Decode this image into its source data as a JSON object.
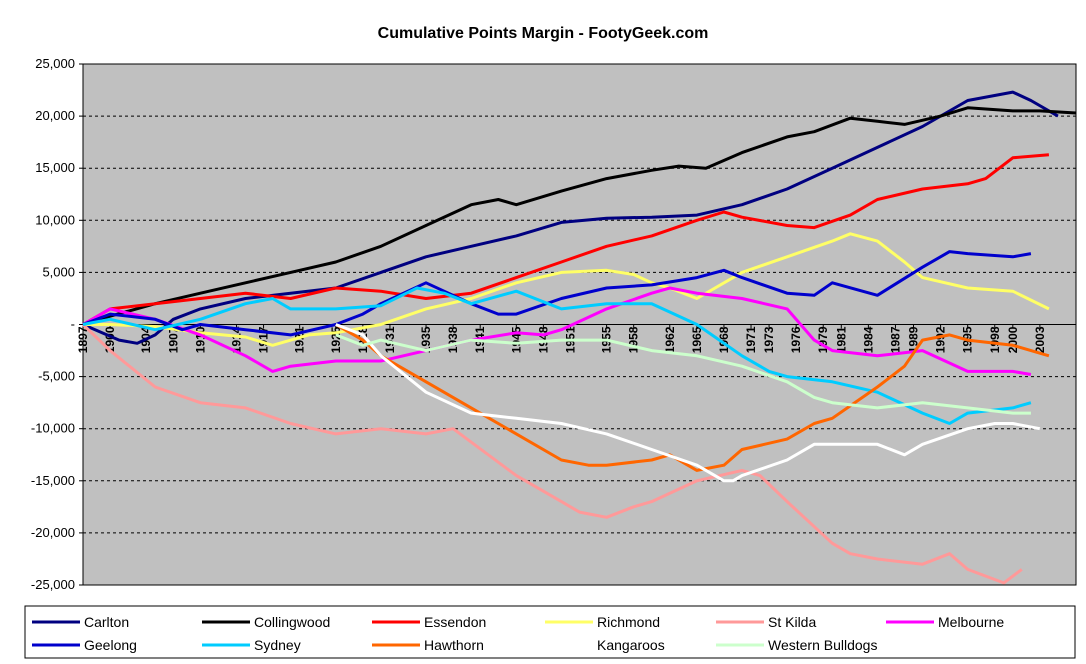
{
  "chart_data": {
    "type": "line",
    "title": "Cumulative Points Margin - FootyGeek.com",
    "xlabel": "",
    "ylabel": "",
    "ylim": [
      -25000,
      25000
    ],
    "xlim": [
      1897,
      2007
    ],
    "y_ticks": [
      25000,
      20000,
      15000,
      10000,
      5000,
      0,
      -5000,
      -10000,
      -15000,
      -20000,
      -25000
    ],
    "y_tick_labels": [
      "25,000",
      "20,000",
      "15,000",
      "10,000",
      "5,000",
      "-",
      "-5,000",
      "-10,000",
      "-15,000",
      "-20,000",
      "-25,000"
    ],
    "x_ticks": [
      1897,
      1900,
      1904,
      1907,
      1910,
      1914,
      1917,
      1921,
      1925,
      1928,
      1931,
      1935,
      1938,
      1941,
      1945,
      1948,
      1951,
      1955,
      1958,
      1962,
      1965,
      1968,
      1971,
      1973,
      1976,
      1979,
      1981,
      1984,
      1987,
      1989,
      1992,
      1995,
      1998,
      2000,
      2003
    ],
    "x_tick_labels": [
      "1897",
      "1900",
      "1904",
      "1907",
      "1910",
      "1914",
      "1917",
      "1921",
      "1925",
      "1928",
      "1931",
      "1935",
      "1938",
      "1941",
      "1945",
      "1948",
      "1951",
      "1955",
      "1958",
      "1962",
      "1965",
      "1968",
      "1971",
      "1973",
      "1976",
      "1979",
      "1981",
      "1984",
      "1987",
      "1989",
      "1992",
      "1995",
      "1998",
      "2000",
      "2003"
    ],
    "grid": "horizontal dashed",
    "background": "#c0c0c0",
    "legend_position": "bottom",
    "series": [
      {
        "name": "Carlton",
        "color": "#000080",
        "x": [
          1897,
          1901,
          1903,
          1905,
          1907,
          1910,
          1915,
          1920,
          1925,
          1930,
          1935,
          1940,
          1945,
          1950,
          1955,
          1960,
          1965,
          1970,
          1975,
          1980,
          1985,
          1990,
          1995,
          2000,
          2002,
          2005
        ],
        "y": [
          0,
          -1500,
          -1800,
          -1000,
          500,
          1500,
          2500,
          3000,
          3500,
          5000,
          6500,
          7500,
          8500,
          9800,
          10200,
          10300,
          10500,
          11500,
          13000,
          15000,
          17000,
          19000,
          21500,
          22300,
          21500,
          20000
        ]
      },
      {
        "name": "Collingwood",
        "color": "#000000",
        "x": [
          1897,
          1900,
          1905,
          1910,
          1915,
          1920,
          1925,
          1930,
          1935,
          1940,
          1943,
          1945,
          1950,
          1955,
          1960,
          1963,
          1966,
          1970,
          1975,
          1978,
          1982,
          1985,
          1988,
          1992,
          1995,
          2000,
          2003,
          2007
        ],
        "y": [
          0,
          800,
          2000,
          3000,
          4000,
          5000,
          6000,
          7500,
          9500,
          11500,
          12000,
          11500,
          12800,
          14000,
          14800,
          15200,
          15000,
          16500,
          18000,
          18500,
          19800,
          19500,
          19200,
          20000,
          20800,
          20500,
          20500,
          20300
        ]
      },
      {
        "name": "Essendon",
        "color": "#ff0000",
        "x": [
          1897,
          1900,
          1905,
          1910,
          1915,
          1920,
          1925,
          1930,
          1935,
          1940,
          1945,
          1950,
          1955,
          1960,
          1965,
          1968,
          1970,
          1975,
          1978,
          1982,
          1985,
          1990,
          1995,
          1997,
          2000,
          2004
        ],
        "y": [
          0,
          1500,
          2000,
          2500,
          3000,
          2500,
          3500,
          3200,
          2500,
          3000,
          4500,
          6000,
          7500,
          8500,
          10000,
          10800,
          10300,
          9500,
          9300,
          10500,
          12000,
          13000,
          13500,
          14000,
          16000,
          16300
        ]
      },
      {
        "name": "Richmond",
        "color": "#ffff66",
        "x": [
          1897,
          1900,
          1905,
          1910,
          1915,
          1918,
          1922,
          1925,
          1930,
          1935,
          1940,
          1945,
          1950,
          1955,
          1958,
          1960,
          1962,
          1965,
          1970,
          1975,
          1980,
          1982,
          1985,
          1988,
          1990,
          1995,
          2000,
          2004
        ],
        "y": [
          0,
          0,
          -200,
          -800,
          -1200,
          -2000,
          -1000,
          -800,
          0,
          1500,
          2500,
          4000,
          5000,
          5200,
          4800,
          4000,
          3500,
          2500,
          5000,
          6500,
          8000,
          8700,
          8000,
          6000,
          4500,
          3500,
          3200,
          1500
        ]
      },
      {
        "name": "St Kilda",
        "color": "#ff9999",
        "x": [
          1897,
          1900,
          1905,
          1910,
          1915,
          1920,
          1925,
          1930,
          1935,
          1938,
          1945,
          1950,
          1952,
          1955,
          1958,
          1960,
          1965,
          1970,
          1972,
          1975,
          1980,
          1982,
          1985,
          1990,
          1993,
          1995,
          1999,
          2001
        ],
        "y": [
          0,
          -2500,
          -6000,
          -7500,
          -8000,
          -9500,
          -10500,
          -10000,
          -10500,
          -10000,
          -14500,
          -17000,
          -18000,
          -18500,
          -17500,
          -17000,
          -15000,
          -14000,
          -14500,
          -17000,
          -21000,
          -22000,
          -22500,
          -23000,
          -22000,
          -23500,
          -24800,
          -23500
        ]
      },
      {
        "name": "Melbourne",
        "color": "#ff00ff",
        "x": [
          1897,
          1900,
          1905,
          1910,
          1915,
          1918,
          1920,
          1925,
          1930,
          1935,
          1940,
          1945,
          1948,
          1950,
          1955,
          1960,
          1962,
          1965,
          1970,
          1975,
          1978,
          1980,
          1985,
          1990,
          1995,
          2000,
          2002
        ],
        "y": [
          0,
          1500,
          500,
          -1000,
          -3000,
          -4500,
          -4000,
          -3500,
          -3500,
          -2500,
          -1500,
          -800,
          -1000,
          -500,
          1500,
          3000,
          3500,
          3000,
          2500,
          1500,
          -1500,
          -2500,
          -3000,
          -2500,
          -4500,
          -4500,
          -4800
        ]
      },
      {
        "name": "Geelong",
        "color": "#0000cc",
        "x": [
          1897,
          1900,
          1905,
          1908,
          1910,
          1915,
          1920,
          1925,
          1928,
          1930,
          1935,
          1940,
          1943,
          1945,
          1950,
          1955,
          1960,
          1965,
          1968,
          1970,
          1975,
          1978,
          1980,
          1985,
          1990,
          1993,
          1995,
          2000,
          2002
        ],
        "y": [
          0,
          1000,
          500,
          -500,
          0,
          -500,
          -1000,
          0,
          1000,
          2000,
          4000,
          2000,
          1000,
          1000,
          2500,
          3500,
          3800,
          4500,
          5200,
          4500,
          3000,
          2800,
          4000,
          2800,
          5500,
          7000,
          6800,
          6500,
          6800
        ]
      },
      {
        "name": "Sydney",
        "color": "#00ccff",
        "x": [
          1897,
          1900,
          1905,
          1910,
          1915,
          1918,
          1920,
          1925,
          1930,
          1934,
          1937,
          1940,
          1945,
          1950,
          1955,
          1960,
          1965,
          1970,
          1973,
          1975,
          1980,
          1985,
          1990,
          1993,
          1995,
          2000,
          2002
        ],
        "y": [
          0,
          500,
          -500,
          500,
          2000,
          2500,
          1500,
          1500,
          1800,
          3500,
          3000,
          2000,
          3200,
          1500,
          2000,
          2000,
          0,
          -3000,
          -4500,
          -5000,
          -5500,
          -6500,
          -8500,
          -9500,
          -8500,
          -8000,
          -7500
        ]
      },
      {
        "name": "Hawthorn",
        "color": "#ff6600",
        "x": [
          1925,
          1928,
          1930,
          1935,
          1940,
          1945,
          1950,
          1953,
          1955,
          1960,
          1962,
          1965,
          1968,
          1970,
          1975,
          1978,
          1980,
          1985,
          1988,
          1990,
          1993,
          1995,
          2000,
          2004
        ],
        "y": [
          0,
          -1500,
          -3000,
          -5500,
          -8000,
          -10500,
          -13000,
          -13500,
          -13500,
          -13000,
          -12500,
          -14000,
          -13500,
          -12000,
          -11000,
          -9500,
          -9000,
          -6000,
          -4000,
          -1500,
          -1000,
          -1500,
          -2000,
          -3000
        ]
      },
      {
        "name": "Kangaroos",
        "color": "#ffffff",
        "x": [
          1925,
          1928,
          1930,
          1935,
          1940,
          1945,
          1950,
          1955,
          1960,
          1965,
          1968,
          1969,
          1970,
          1975,
          1978,
          1980,
          1985,
          1988,
          1990,
          1995,
          1998,
          2000,
          2003
        ],
        "y": [
          0,
          -1000,
          -3000,
          -6500,
          -8500,
          -9000,
          -9500,
          -10500,
          -12000,
          -13500,
          -15000,
          -15000,
          -14500,
          -13000,
          -11500,
          -11500,
          -11500,
          -12500,
          -11500,
          -10000,
          -9500,
          -9500,
          -10000
        ]
      },
      {
        "name": "Western Bulldogs",
        "color": "#ccffcc",
        "x": [
          1925,
          1928,
          1930,
          1935,
          1940,
          1945,
          1950,
          1955,
          1960,
          1965,
          1970,
          1975,
          1978,
          1980,
          1985,
          1990,
          1995,
          2000,
          2002
        ],
        "y": [
          -1000,
          -2000,
          -1500,
          -2500,
          -1500,
          -1800,
          -1500,
          -1500,
          -2500,
          -3000,
          -4000,
          -5500,
          -7000,
          -7500,
          -8000,
          -7500,
          -8000,
          -8500,
          -8500
        ]
      }
    ]
  }
}
